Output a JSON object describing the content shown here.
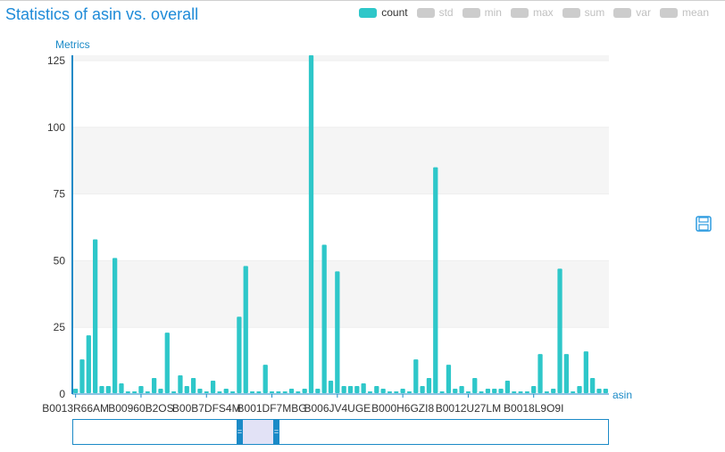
{
  "chart_data": {
    "type": "bar",
    "title": "Statistics of asin vs. overall",
    "xlabel": "asin",
    "ylabel": "Metrics",
    "ylim": [
      0,
      127
    ],
    "yticks": [
      0,
      25,
      50,
      75,
      100,
      125
    ],
    "grid": true,
    "legend_position": "top-right",
    "legend": [
      {
        "name": "count",
        "active": true,
        "color": "#2ec7c9"
      },
      {
        "name": "std",
        "active": false,
        "color": "#cccccc"
      },
      {
        "name": "min",
        "active": false,
        "color": "#cccccc"
      },
      {
        "name": "max",
        "active": false,
        "color": "#cccccc"
      },
      {
        "name": "sum",
        "active": false,
        "color": "#cccccc"
      },
      {
        "name": "var",
        "active": false,
        "color": "#cccccc"
      },
      {
        "name": "mean",
        "active": false,
        "color": "#cccccc"
      }
    ],
    "tick_labels": [
      "B0013R66AM",
      "B00960B2OS",
      "B00B7DFS4M",
      "B001DF7MBG",
      "B006JV4UGE",
      "B000H6GZI8",
      "B0012U27LM",
      "B0018L9O9I"
    ],
    "series": [
      {
        "name": "count",
        "values": [
          2,
          13,
          22,
          58,
          3,
          3,
          51,
          4,
          1,
          1,
          3,
          1,
          6,
          2,
          23,
          1,
          7,
          3,
          6,
          2,
          1,
          5,
          1,
          2,
          1,
          29,
          48,
          1,
          1,
          11,
          1,
          1,
          1,
          2,
          1,
          2,
          127,
          2,
          56,
          5,
          46,
          3,
          3,
          3,
          4,
          1,
          3,
          2,
          1,
          1,
          2,
          1,
          13,
          3,
          6,
          85,
          1,
          11,
          2,
          3,
          1,
          6,
          1,
          2,
          2,
          2,
          5,
          1,
          1,
          1,
          3,
          15,
          1,
          2,
          47,
          15,
          1,
          3,
          16,
          6,
          2,
          2
        ]
      }
    ]
  },
  "ui": {
    "save_icon": "save-icon",
    "zoom_handle_glyph": "="
  }
}
